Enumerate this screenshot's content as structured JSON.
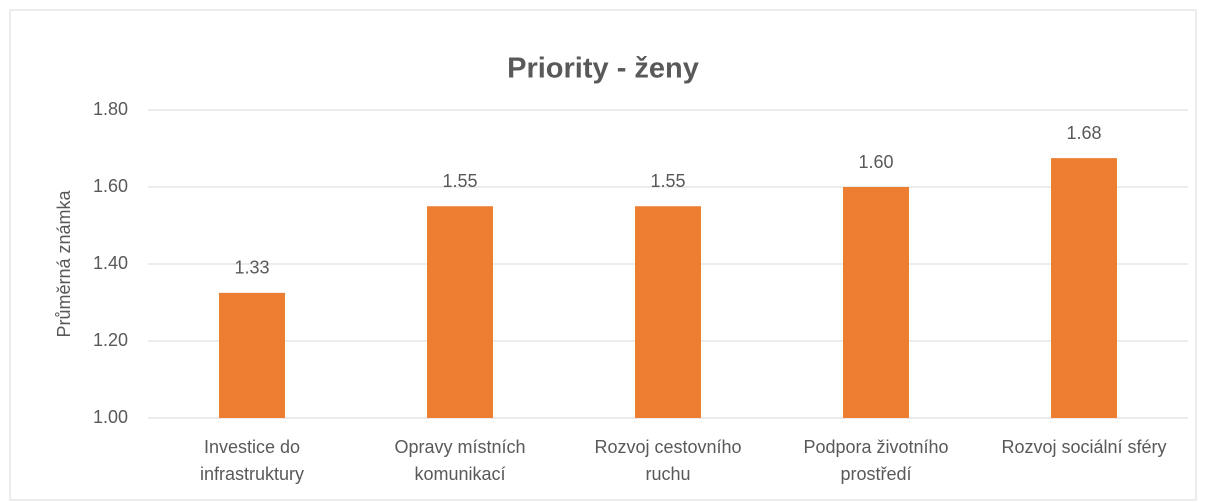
{
  "chart_data": {
    "type": "bar",
    "title": "Priority - ženy",
    "y_label": "Průměrná známka",
    "categories": [
      "Investice do infrastruktury",
      "Opravy místních komunikací",
      "Rozvoj cestovního ruchu",
      "Podpora životního prostředí",
      "Rozvoj sociální sféry"
    ],
    "values": [
      1.325,
      1.55,
      1.55,
      1.6,
      1.675
    ],
    "value_labels": [
      "1.33",
      "1.55",
      "1.55",
      "1.60",
      "1.68"
    ],
    "color": "#ed7d31",
    "ylim": [
      1,
      1.8
    ],
    "yticks": [
      {
        "value": 1,
        "label": "1.00"
      },
      {
        "value": 1.2,
        "label": "1.20"
      },
      {
        "value": 1.4,
        "label": "1.40"
      },
      {
        "value": 1.6,
        "label": "1.60"
      },
      {
        "value": 1.8,
        "label": "1.80"
      }
    ],
    "grid": true
  }
}
